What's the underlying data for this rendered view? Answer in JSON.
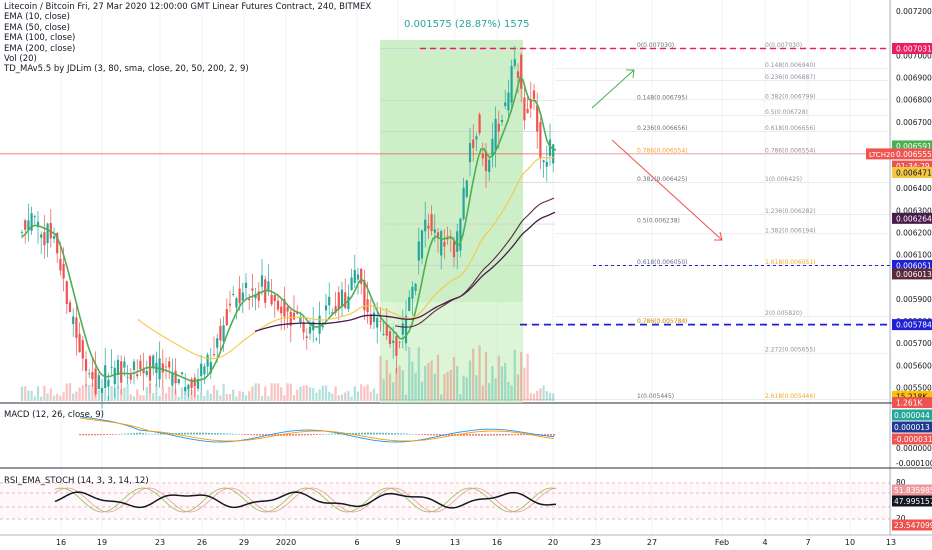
{
  "header": {
    "title": "Litecoin / Bitcoin Fri, 27 Mar 2020 12:00:00 GMT Linear Futures Contract, 240, BITMEX",
    "indicators": [
      "EMA (10, close)",
      "EMA (50, close)",
      "EMA (100, close)",
      "EMA (200, close)",
      "Vol (20)",
      "TD_MAv5.5 by JDLim (3, 80, sma, close, 20, 50, 200, 2, 9)"
    ],
    "range_label": "0.001575 (28.87%) 1575"
  },
  "colors": {
    "up": "#26a69a",
    "down": "#ef5350",
    "ema10": "#4caf50",
    "ema50": "#f5c842",
    "ema100": "#4a1a4a",
    "ema200": "#5a2a3a",
    "zone": "#c8f0c0",
    "blue": "#1f1fd6",
    "pink": "#e91e63"
  },
  "chart_data": [
    {
      "type": "line",
      "title": "",
      "xlabel": "",
      "ylabel": "",
      "symbol_badge": "LTCH20",
      "x_ticks": [
        "16",
        "19",
        "23",
        "26",
        "29",
        "2020",
        "6",
        "9",
        "13",
        "16",
        "20",
        "23",
        "27",
        "Feb",
        "4",
        "7",
        "10",
        "13"
      ],
      "y_ticks": [
        "0.007200",
        "0.007000",
        "0.006900",
        "0.006800",
        "0.006700",
        "0.006600",
        "0.006400",
        "0.006300",
        "0.006200",
        "0.006100",
        "0.005900",
        "0.005800",
        "0.005700",
        "0.005600",
        "0.005500"
      ],
      "ylim": [
        0.00543,
        0.00725
      ],
      "price_tags": [
        {
          "text": "0.007031",
          "v": 0.007031,
          "color": "#e91e63"
        },
        {
          "text": "0.006591",
          "v": 0.006591,
          "color": "#4caf50"
        },
        {
          "text": "0.006555",
          "v": 0.006555,
          "color": "#ef5350"
        },
        {
          "text": "01:34:29",
          "v": 0.0065,
          "color": "#ef5350"
        },
        {
          "text": "0.006471",
          "v": 0.006471,
          "color": "#f5c842"
        },
        {
          "text": "0.006264",
          "v": 0.006264,
          "color": "#4a1a4a"
        },
        {
          "text": "0.006051",
          "v": 0.006051,
          "color": "#1f1fd6"
        },
        {
          "text": "0.006013",
          "v": 0.006013,
          "color": "#5a2a3a"
        },
        {
          "text": "0.005784",
          "v": 0.005784,
          "color": "#1f1fd6"
        },
        {
          "text": "15.218K",
          "v": 0.00546,
          "color": "#ffc107"
        },
        {
          "text": "1.261K",
          "v": 0.005432,
          "color": "#ef5350"
        }
      ],
      "fib_left": [
        {
          "label": "0(0.007030)",
          "v": 0.00703
        },
        {
          "label": "0.148(0.006795)",
          "v": 0.006795
        },
        {
          "label": "0.236(0.006656)",
          "v": 0.006656
        },
        {
          "label": "0.382(0.006425)",
          "v": 0.006425
        },
        {
          "label": "0.5(0.006238)",
          "v": 0.006238
        },
        {
          "label": "0.618(0.006050)",
          "v": 0.00605
        },
        {
          "label": "0.786(0.005784)",
          "v": 0.005784
        },
        {
          "label": "1(0.005445)",
          "v": 0.005445
        }
      ],
      "fib_right": [
        {
          "label": "0(0.007030)",
          "v": 0.00703
        },
        {
          "label": "0.148(0.006940)",
          "v": 0.00694
        },
        {
          "label": "0.236(0.006887)",
          "v": 0.006887
        },
        {
          "label": "0.382(0.006799)",
          "v": 0.006799
        },
        {
          "label": "0.5(0.006728)",
          "v": 0.006728
        },
        {
          "label": "0.618(0.006656)",
          "v": 0.006656
        },
        {
          "label": "0.786(0.006554)",
          "v": 0.006554
        },
        {
          "label": "1(0.006425)",
          "v": 0.006425
        },
        {
          "label": "1.236(0.006282)",
          "v": 0.006282
        },
        {
          "label": "1.382(0.006194)",
          "v": 0.006194
        },
        {
          "label": "1.618(0.006051)",
          "v": 0.006051
        },
        {
          "label": "2(0.005820)",
          "v": 0.00582
        },
        {
          "label": "2.272(0.005655)",
          "v": 0.005655
        },
        {
          "label": "2.618(0.005446)",
          "v": 0.005446
        }
      ]
    },
    {
      "type": "bar",
      "title": "MACD (12, 26, close, 9)",
      "price_tags": [
        {
          "text": "0.000044",
          "color": "#26a69a"
        },
        {
          "text": "0.000013",
          "color": "#1f3a93"
        },
        {
          "text": "-0.000031",
          "color": "#ef5350"
        }
      ],
      "y_ticks": [
        "0.000000",
        "-0.000100"
      ]
    },
    {
      "type": "line",
      "title": "RSI_EMA_STOCH (14, 3, 3, 14, 12)",
      "price_tags": [
        {
          "text": "51.835985",
          "color": "#ef9a9a"
        },
        {
          "text": "47.995157",
          "color": "#131722"
        },
        {
          "text": "23.547099",
          "color": "#ef5350"
        }
      ],
      "y_ticks": [
        "80",
        "20"
      ]
    }
  ]
}
